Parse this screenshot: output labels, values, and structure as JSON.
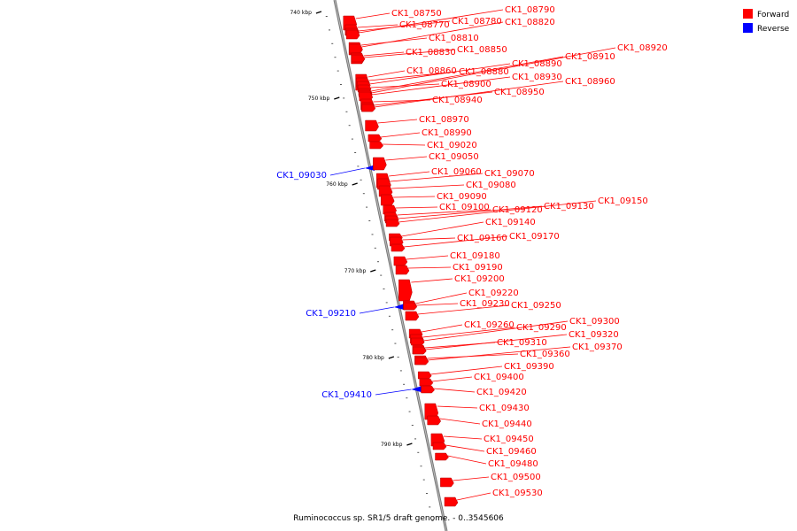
{
  "caption": "Ruminococcus sp. SR1/5 draft genome. - 0..3545606",
  "legend": [
    {
      "label": "Forward",
      "color": "#ff0000"
    },
    {
      "label": "Reverse",
      "color": "#0000ff"
    }
  ],
  "ticks": [
    "740 kbp",
    "750 kbp",
    "760 kbp",
    "770 kbp",
    "780 kbp",
    "790 kbp"
  ],
  "genes": [
    {
      "id": "CK1_08750",
      "strand": "forward"
    },
    {
      "id": "CK1_08770",
      "strand": "forward"
    },
    {
      "id": "CK1_08780",
      "strand": "forward"
    },
    {
      "id": "CK1_08790",
      "strand": "forward"
    },
    {
      "id": "CK1_08810",
      "strand": "forward"
    },
    {
      "id": "CK1_08820",
      "strand": "forward"
    },
    {
      "id": "CK1_08830",
      "strand": "forward"
    },
    {
      "id": "CK1_08850",
      "strand": "forward"
    },
    {
      "id": "CK1_08860",
      "strand": "forward"
    },
    {
      "id": "CK1_08880",
      "strand": "forward"
    },
    {
      "id": "CK1_08890",
      "strand": "forward"
    },
    {
      "id": "CK1_08900",
      "strand": "forward"
    },
    {
      "id": "CK1_08910",
      "strand": "forward"
    },
    {
      "id": "CK1_08920",
      "strand": "forward"
    },
    {
      "id": "CK1_08930",
      "strand": "forward"
    },
    {
      "id": "CK1_08940",
      "strand": "forward"
    },
    {
      "id": "CK1_08950",
      "strand": "forward"
    },
    {
      "id": "CK1_08960",
      "strand": "forward"
    },
    {
      "id": "CK1_08970",
      "strand": "forward"
    },
    {
      "id": "CK1_08990",
      "strand": "forward"
    },
    {
      "id": "CK1_09020",
      "strand": "forward"
    },
    {
      "id": "CK1_09030",
      "strand": "reverse"
    },
    {
      "id": "CK1_09050",
      "strand": "forward"
    },
    {
      "id": "CK1_09060",
      "strand": "forward"
    },
    {
      "id": "CK1_09070",
      "strand": "forward"
    },
    {
      "id": "CK1_09080",
      "strand": "forward"
    },
    {
      "id": "CK1_09090",
      "strand": "forward"
    },
    {
      "id": "CK1_09100",
      "strand": "forward"
    },
    {
      "id": "CK1_09120",
      "strand": "forward"
    },
    {
      "id": "CK1_09130",
      "strand": "forward"
    },
    {
      "id": "CK1_09140",
      "strand": "forward"
    },
    {
      "id": "CK1_09150",
      "strand": "forward"
    },
    {
      "id": "CK1_09160",
      "strand": "forward"
    },
    {
      "id": "CK1_09170",
      "strand": "forward"
    },
    {
      "id": "CK1_09180",
      "strand": "forward"
    },
    {
      "id": "CK1_09190",
      "strand": "forward"
    },
    {
      "id": "CK1_09200",
      "strand": "forward"
    },
    {
      "id": "CK1_09210",
      "strand": "reverse"
    },
    {
      "id": "CK1_09220",
      "strand": "forward"
    },
    {
      "id": "CK1_09230",
      "strand": "forward"
    },
    {
      "id": "CK1_09250",
      "strand": "forward"
    },
    {
      "id": "CK1_09260",
      "strand": "forward"
    },
    {
      "id": "CK1_09290",
      "strand": "forward"
    },
    {
      "id": "CK1_09300",
      "strand": "forward"
    },
    {
      "id": "CK1_09310",
      "strand": "forward"
    },
    {
      "id": "CK1_09320",
      "strand": "forward"
    },
    {
      "id": "CK1_09360",
      "strand": "forward"
    },
    {
      "id": "CK1_09370",
      "strand": "forward"
    },
    {
      "id": "CK1_09390",
      "strand": "forward"
    },
    {
      "id": "CK1_09400",
      "strand": "forward"
    },
    {
      "id": "CK1_09410",
      "strand": "reverse"
    },
    {
      "id": "CK1_09420",
      "strand": "forward"
    },
    {
      "id": "CK1_09430",
      "strand": "forward"
    },
    {
      "id": "CK1_09440",
      "strand": "forward"
    },
    {
      "id": "CK1_09450",
      "strand": "forward"
    },
    {
      "id": "CK1_09460",
      "strand": "forward"
    },
    {
      "id": "CK1_09480",
      "strand": "forward"
    },
    {
      "id": "CK1_09500",
      "strand": "forward"
    },
    {
      "id": "CK1_09530",
      "strand": "forward"
    }
  ]
}
